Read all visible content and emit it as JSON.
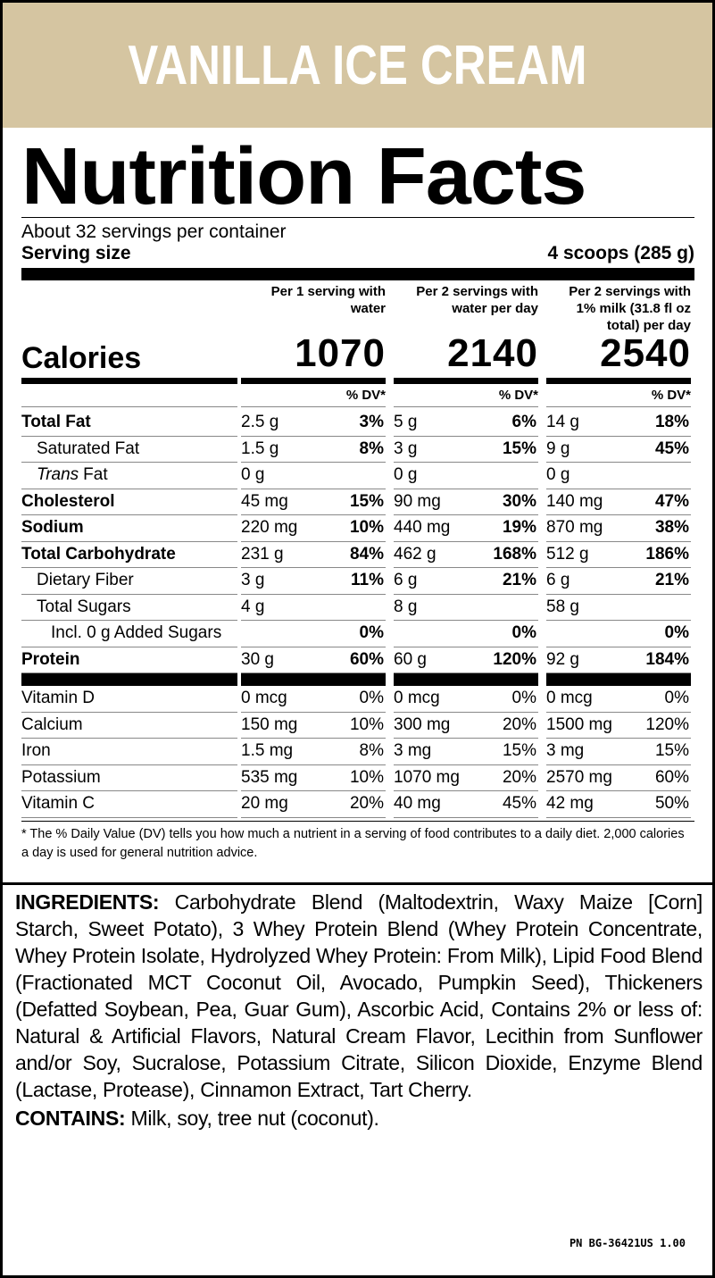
{
  "header": {
    "title": "VANILLA ICE CREAM"
  },
  "label": {
    "title": "Nutrition Facts",
    "servings": "About 32 servings per container",
    "serving_size_label": "Serving size",
    "serving_size": "4 scoops (285 g)",
    "columns": [
      "Per 1 serving with water",
      "Per 2 servings with water per day",
      "Per 2 servings with 1% milk (31.8 fl oz total) per day"
    ],
    "calories_label": "Calories",
    "calories": [
      "1070",
      "2140",
      "2540"
    ],
    "dv_header": "% DV*",
    "rows": [
      {
        "name": "Total Fat",
        "values": [
          [
            "2.5 g",
            "3%"
          ],
          [
            "5 g",
            "6%"
          ],
          [
            "14 g",
            "18%"
          ]
        ]
      },
      {
        "name": "Saturated Fat",
        "values": [
          [
            "1.5 g",
            "8%"
          ],
          [
            "3 g",
            "15%"
          ],
          [
            "9 g",
            "45%"
          ]
        ]
      },
      {
        "name": [
          "Trans",
          "Fat"
        ],
        "values": [
          [
            "0 g",
            null
          ],
          [
            "0 g",
            null
          ],
          [
            "0 g",
            null
          ]
        ]
      },
      {
        "name": "Cholesterol",
        "values": [
          [
            "45 mg",
            "15%"
          ],
          [
            "90 mg",
            "30%"
          ],
          [
            "140 mg",
            "47%"
          ]
        ]
      },
      {
        "name": "Sodium",
        "values": [
          [
            "220 mg",
            "10%"
          ],
          [
            "440 mg",
            "19%"
          ],
          [
            "870 mg",
            "38%"
          ]
        ]
      },
      {
        "name": "Total Carbohydrate",
        "values": [
          [
            "231 g",
            "84%"
          ],
          [
            "462 g",
            "168%"
          ],
          [
            "512 g",
            "186%"
          ]
        ]
      },
      {
        "name": "Dietary Fiber",
        "values": [
          [
            "3 g",
            "11%"
          ],
          [
            "6 g",
            "21%"
          ],
          [
            "6 g",
            "21%"
          ]
        ]
      },
      {
        "name": "Total Sugars",
        "values": [
          [
            "4 g",
            null
          ],
          [
            "8 g",
            null
          ],
          [
            "58 g",
            null
          ]
        ]
      },
      {
        "name": "Incl. 0 g Added Sugars",
        "values": [
          [
            null,
            "0%"
          ],
          [
            null,
            "0%"
          ],
          [
            null,
            "0%"
          ]
        ]
      },
      {
        "name": "Protein",
        "values": [
          [
            "30 g",
            "60%"
          ],
          [
            "60 g",
            "120%"
          ],
          [
            "92 g",
            "184%"
          ]
        ]
      }
    ],
    "vitamins": [
      {
        "name": "Vitamin D",
        "values": [
          [
            "0 mcg",
            "0%"
          ],
          [
            "0 mcg",
            "0%"
          ],
          [
            "0 mcg",
            "0%"
          ]
        ]
      },
      {
        "name": "Calcium",
        "values": [
          [
            "150 mg",
            "10%"
          ],
          [
            "300 mg",
            "20%"
          ],
          [
            "1500 mg",
            "120%"
          ]
        ]
      },
      {
        "name": "Iron",
        "values": [
          [
            "1.5 mg",
            "8%"
          ],
          [
            "3 mg",
            "15%"
          ],
          [
            "3 mg",
            "15%"
          ]
        ]
      },
      {
        "name": "Potassium",
        "values": [
          [
            "535 mg",
            "10%"
          ],
          [
            "1070 mg",
            "20%"
          ],
          [
            "2570 mg",
            "60%"
          ]
        ]
      },
      {
        "name": "Vitamin C",
        "values": [
          [
            "20 mg",
            "20%"
          ],
          [
            "40 mg",
            "45%"
          ],
          [
            "42 mg",
            "50%"
          ]
        ]
      }
    ],
    "footnote": "* The % Daily Value (DV) tells you how much a nutrient in a serving of food contributes to a daily diet. 2,000 calories a day is used for general nutrition advice."
  },
  "ingredients": {
    "label": "INGREDIENTS:",
    "text": "Carbohydrate Blend (Maltodextrin, Waxy Maize [Corn] Starch, Sweet Potato), 3 Whey Protein Blend (Whey Protein Concentrate, Whey Protein Isolate, Hydrolyzed Whey Protein: From Milk), Lipid Food Blend (Fractionated MCT Coconut Oil, Avocado, Pumpkin Seed), Thickeners (Defatted Soybean, Pea, Guar Gum), Ascorbic Acid, Contains 2% or less of: Natural & Artificial Flavors, Natural Cream Flavor, Lecithin from Sunflower and/or Soy, Sucralose, Potassium Citrate, Silicon Dioxide, Enzyme Blend (Lactase, Protease), Cinnamon Extract, Tart Cherry."
  },
  "contains": {
    "label": "CONTAINS:",
    "text": "Milk, soy, tree nut (coconut)."
  },
  "part_number": "PN BG-36421US 1.00"
}
